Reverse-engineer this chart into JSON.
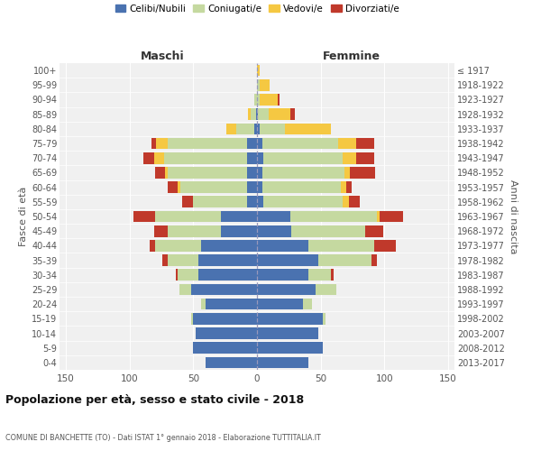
{
  "age_groups": [
    "0-4",
    "5-9",
    "10-14",
    "15-19",
    "20-24",
    "25-29",
    "30-34",
    "35-39",
    "40-44",
    "45-49",
    "50-54",
    "55-59",
    "60-64",
    "65-69",
    "70-74",
    "75-79",
    "80-84",
    "85-89",
    "90-94",
    "95-99",
    "100+"
  ],
  "birth_years": [
    "2013-2017",
    "2008-2012",
    "2003-2007",
    "1998-2002",
    "1993-1997",
    "1988-1992",
    "1983-1987",
    "1978-1982",
    "1973-1977",
    "1968-1972",
    "1963-1967",
    "1958-1962",
    "1953-1957",
    "1948-1952",
    "1943-1947",
    "1938-1942",
    "1933-1937",
    "1928-1932",
    "1923-1927",
    "1918-1922",
    "≤ 1917"
  ],
  "colors": {
    "celibi": "#4a72b0",
    "coniugati": "#c5d9a0",
    "vedovi": "#f5c842",
    "divorziati": "#c0392b"
  },
  "maschi": {
    "celibi": [
      40,
      50,
      48,
      50,
      40,
      52,
      46,
      46,
      44,
      28,
      28,
      8,
      8,
      8,
      8,
      8,
      2,
      1,
      0,
      0,
      0
    ],
    "coniugati": [
      0,
      0,
      0,
      2,
      4,
      9,
      16,
      24,
      36,
      42,
      52,
      42,
      52,
      62,
      65,
      62,
      14,
      4,
      2,
      0,
      0
    ],
    "vedovi": [
      0,
      0,
      0,
      0,
      0,
      0,
      0,
      0,
      0,
      0,
      0,
      0,
      2,
      2,
      8,
      9,
      8,
      2,
      0,
      0,
      0
    ],
    "divorziati": [
      0,
      0,
      0,
      0,
      0,
      0,
      2,
      4,
      4,
      11,
      17,
      9,
      8,
      8,
      8,
      4,
      0,
      0,
      0,
      0,
      0
    ]
  },
  "femmine": {
    "celibi": [
      40,
      52,
      48,
      52,
      36,
      46,
      40,
      48,
      40,
      27,
      26,
      5,
      4,
      4,
      5,
      4,
      2,
      1,
      0,
      0,
      0
    ],
    "coniugati": [
      0,
      0,
      0,
      2,
      7,
      16,
      18,
      42,
      52,
      58,
      68,
      62,
      62,
      65,
      62,
      60,
      20,
      8,
      2,
      2,
      0
    ],
    "vedovi": [
      0,
      0,
      0,
      0,
      0,
      0,
      0,
      0,
      0,
      0,
      2,
      5,
      4,
      4,
      11,
      14,
      36,
      17,
      14,
      8,
      2
    ],
    "divorziati": [
      0,
      0,
      0,
      0,
      0,
      0,
      2,
      4,
      17,
      14,
      19,
      9,
      4,
      20,
      14,
      14,
      0,
      4,
      2,
      0,
      0
    ]
  },
  "title": "Popolazione per età, sesso e stato civile - 2018",
  "subtitle": "COMUNE DI BANCHETTE (TO) - Dati ISTAT 1° gennaio 2018 - Elaborazione TUTTITALIA.IT",
  "xlabel_left": "Maschi",
  "xlabel_right": "Femmine",
  "ylabel_left": "Fasce di età",
  "ylabel_right": "Anni di nascita",
  "legend_labels": [
    "Celibi/Nubili",
    "Coniugati/e",
    "Vedovi/e",
    "Divorziati/e"
  ],
  "xlim": 155,
  "background": "#f0f0f0"
}
